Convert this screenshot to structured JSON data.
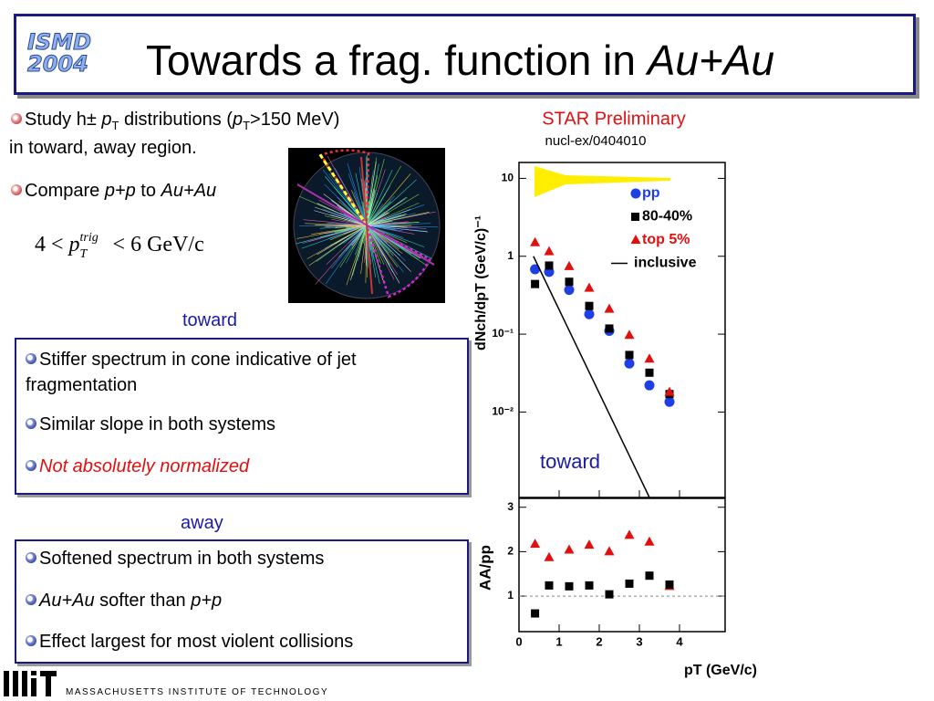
{
  "header": {
    "title": "Towards a frag. function in",
    "title_em": "Au+Au",
    "logo": [
      "ISMD",
      "2004"
    ]
  },
  "intro": {
    "bullet_1": [
      "Study h± ",
      "p",
      "T",
      " distributions (",
      "p",
      "T",
      ">150 MeV)",
      "in toward, away region."
    ],
    "bullet_2": [
      "Compare ",
      "p+p",
      " to ",
      "Au+Au"
    ],
    "formula": [
      "4 <",
      "p",
      "T",
      "trig",
      "< 6 GeV/c"
    ]
  },
  "toward_box": {
    "heading": "toward",
    "bullets": [
      [
        "Stiffer spectrum in cone indicative of jet fragmentation"
      ],
      [
        "Similar slope in both systems"
      ],
      [
        "Not absolutely normalized"
      ]
    ]
  },
  "away_box": {
    "heading": "away",
    "bullets": [
      [
        "Softened spectrum in both systems"
      ],
      [
        "Au+Au",
        " softer than ",
        "p+p"
      ],
      [
        "Effect largest for most violent collisions"
      ]
    ]
  },
  "footer": {
    "institution": "MASSACHUSETTS INSTITUTE OF TECHNOLOGY"
  },
  "chart_data": [
    {
      "type": "scatter",
      "title": "STAR Preliminary",
      "subtitle": "nucl-ex/0404010",
      "annotation": "toward",
      "y_label": "dNch/dpT (GeV/c)⁻¹",
      "yscale": "log",
      "x": [
        0.4,
        0.75,
        1.25,
        1.75,
        2.25,
        2.75,
        3.25,
        3.75
      ],
      "xlim": [
        0,
        5
      ],
      "ylim": [
        0.0008,
        16
      ],
      "yticks": [
        {
          "value": 0.01,
          "label": "10⁻²"
        },
        {
          "value": 0.1,
          "label": "10⁻¹"
        },
        1,
        10
      ],
      "series": [
        {
          "name": "pp",
          "color": "#1f3fe6",
          "marker": "circle",
          "values": [
            0.68,
            0.63,
            0.37,
            0.18,
            0.11,
            0.042,
            0.022,
            0.0135
          ]
        },
        {
          "name": "80-40%",
          "color": "#000000",
          "marker": "square",
          "values": [
            0.44,
            0.76,
            0.47,
            0.23,
            0.118,
            0.054,
            0.032,
            0.017
          ]
        },
        {
          "name": "top 5%",
          "color": "#e01010",
          "marker": "triangle",
          "values": [
            1.5,
            1.15,
            0.74,
            0.39,
            0.21,
            0.097,
            0.048,
            0.018
          ]
        },
        {
          "name": "inclusive",
          "color": "#000000",
          "marker": "line",
          "x": [
            0.36,
            3.25
          ],
          "values": [
            1,
            0.0008
          ]
        }
      ]
    },
    {
      "type": "scatter",
      "y_label": "AA/pp",
      "x_label": "pT (GeV/c)",
      "x": [
        0.4,
        0.75,
        1.25,
        1.75,
        2.25,
        2.75,
        3.25,
        3.75
      ],
      "xlim": [
        0,
        5
      ],
      "ylim": [
        0.2,
        3.2
      ],
      "xticks": [
        0,
        1,
        2,
        3,
        4
      ],
      "yticks": [
        1,
        2,
        3
      ],
      "reference_line": 1,
      "series": [
        {
          "color": "#e01010",
          "marker": "triangle",
          "values": [
            2.17,
            1.87,
            2.04,
            2.15,
            2.0,
            2.37,
            2.22,
            1.22
          ]
        },
        {
          "color": "#000000",
          "marker": "square",
          "values": [
            0.61,
            1.24,
            1.22,
            1.24,
            1.04,
            1.28,
            1.46,
            1.26
          ]
        }
      ]
    }
  ]
}
